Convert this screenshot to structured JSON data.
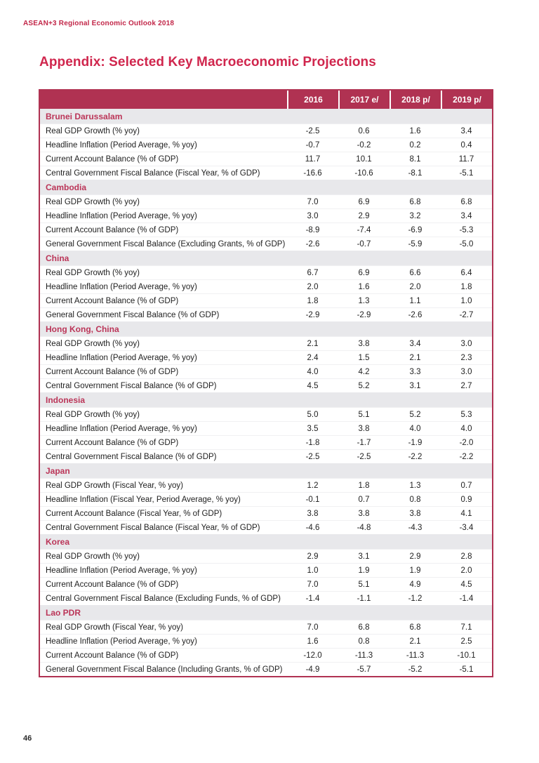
{
  "page": {
    "header": "ASEAN+3 Regional Economic Outlook 2018",
    "title": "Appendix: Selected Key Macroeconomic Projections",
    "page_number": "46"
  },
  "colors": {
    "table_header_bg": "#b03252",
    "table_border": "#b03252",
    "section_band_bg": "#e8e8eb",
    "section_text": "#bb3558",
    "title_red": "#d0264d",
    "body_text": "#1e1e1e"
  },
  "table": {
    "columns": [
      "2016",
      "2017 e/",
      "2018 p/",
      "2019 p/"
    ],
    "sections": [
      {
        "country": "Brunei Darussalam",
        "rows": [
          {
            "label": "Real GDP Growth (% yoy)",
            "values": [
              "-2.5",
              "0.6",
              "1.6",
              "3.4"
            ]
          },
          {
            "label": "Headline Inflation (Period Average, % yoy)",
            "values": [
              "-0.7",
              "-0.2",
              "0.2",
              "0.4"
            ]
          },
          {
            "label": "Current Account Balance (% of GDP)",
            "values": [
              "11.7",
              "10.1",
              "8.1",
              "11.7"
            ]
          },
          {
            "label": "Central Government Fiscal Balance (Fiscal Year, % of GDP)",
            "values": [
              "-16.6",
              "-10.6",
              "-8.1",
              "-5.1"
            ]
          }
        ]
      },
      {
        "country": "Cambodia",
        "rows": [
          {
            "label": "Real GDP Growth (% yoy)",
            "values": [
              "7.0",
              "6.9",
              "6.8",
              "6.8"
            ]
          },
          {
            "label": "Headline Inflation (Period Average, % yoy)",
            "values": [
              "3.0",
              "2.9",
              "3.2",
              "3.4"
            ]
          },
          {
            "label": "Current Account Balance (% of GDP)",
            "values": [
              "-8.9",
              "-7.4",
              "-6.9",
              "-5.3"
            ]
          },
          {
            "label": "General Government Fiscal Balance (Excluding Grants, % of GDP)",
            "values": [
              "-2.6",
              "-0.7",
              "-5.9",
              "-5.0"
            ]
          }
        ]
      },
      {
        "country": "China",
        "rows": [
          {
            "label": "Real GDP Growth (% yoy)",
            "values": [
              "6.7",
              "6.9",
              "6.6",
              "6.4"
            ]
          },
          {
            "label": "Headline Inflation (Period Average, % yoy)",
            "values": [
              "2.0",
              "1.6",
              "2.0",
              "1.8"
            ]
          },
          {
            "label": "Current Account Balance (% of GDP)",
            "values": [
              "1.8",
              "1.3",
              "1.1",
              "1.0"
            ]
          },
          {
            "label": "General Government Fiscal Balance (% of GDP)",
            "values": [
              "-2.9",
              "-2.9",
              "-2.6",
              "-2.7"
            ]
          }
        ]
      },
      {
        "country": "Hong Kong, China",
        "rows": [
          {
            "label": "Real GDP Growth (% yoy)",
            "values": [
              "2.1",
              "3.8",
              "3.4",
              "3.0"
            ]
          },
          {
            "label": "Headline Inflation (Period Average, % yoy)",
            "values": [
              "2.4",
              "1.5",
              "2.1",
              "2.3"
            ]
          },
          {
            "label": "Current Account Balance (% of GDP)",
            "values": [
              "4.0",
              "4.2",
              "3.3",
              "3.0"
            ]
          },
          {
            "label": "Central Government Fiscal Balance (% of GDP)",
            "values": [
              "4.5",
              "5.2",
              "3.1",
              "2.7"
            ]
          }
        ]
      },
      {
        "country": "Indonesia",
        "rows": [
          {
            "label": "Real GDP Growth (% yoy)",
            "values": [
              "5.0",
              "5.1",
              "5.2",
              "5.3"
            ]
          },
          {
            "label": "Headline Inflation (Period Average, % yoy)",
            "values": [
              "3.5",
              "3.8",
              "4.0",
              "4.0"
            ]
          },
          {
            "label": "Current Account Balance (% of GDP)",
            "values": [
              "-1.8",
              "-1.7",
              "-1.9",
              "-2.0"
            ]
          },
          {
            "label": "Central Government Fiscal Balance (% of GDP)",
            "values": [
              "-2.5",
              "-2.5",
              "-2.2",
              "-2.2"
            ]
          }
        ]
      },
      {
        "country": "Japan",
        "rows": [
          {
            "label": "Real GDP Growth (Fiscal Year, % yoy)",
            "values": [
              "1.2",
              "1.8",
              "1.3",
              "0.7"
            ]
          },
          {
            "label": "Headline Inflation (Fiscal Year, Period Average, % yoy)",
            "values": [
              "-0.1",
              "0.7",
              "0.8",
              "0.9"
            ]
          },
          {
            "label": "Current Account Balance (Fiscal Year, % of GDP)",
            "values": [
              "3.8",
              "3.8",
              "3.8",
              "4.1"
            ]
          },
          {
            "label": "Central Government Fiscal Balance (Fiscal Year, % of GDP)",
            "values": [
              "-4.6",
              "-4.8",
              "-4.3",
              "-3.4"
            ]
          }
        ]
      },
      {
        "country": "Korea",
        "rows": [
          {
            "label": "Real GDP Growth (% yoy)",
            "values": [
              "2.9",
              "3.1",
              "2.9",
              "2.8"
            ]
          },
          {
            "label": "Headline Inflation (Period Average, % yoy)",
            "values": [
              "1.0",
              "1.9",
              "1.9",
              "2.0"
            ]
          },
          {
            "label": "Current Account Balance (% of GDP)",
            "values": [
              "7.0",
              "5.1",
              "4.9",
              "4.5"
            ]
          },
          {
            "label": "Central Government Fiscal Balance (Excluding Funds, % of GDP)",
            "values": [
              "-1.4",
              "-1.1",
              "-1.2",
              "-1.4"
            ]
          }
        ]
      },
      {
        "country": "Lao PDR",
        "rows": [
          {
            "label": "Real GDP Growth (Fiscal Year, % yoy)",
            "values": [
              "7.0",
              "6.8",
              "6.8",
              "7.1"
            ]
          },
          {
            "label": "Headline Inflation (Period Average, % yoy)",
            "values": [
              "1.6",
              "0.8",
              "2.1",
              "2.5"
            ]
          },
          {
            "label": "Current Account Balance (% of GDP)",
            "values": [
              "-12.0",
              "-11.3",
              "-11.3",
              "-10.1"
            ]
          },
          {
            "label": "General Government Fiscal Balance (Including Grants, % of GDP)",
            "values": [
              "-4.9",
              "-5.7",
              "-5.2",
              "-5.1"
            ]
          }
        ]
      }
    ]
  }
}
